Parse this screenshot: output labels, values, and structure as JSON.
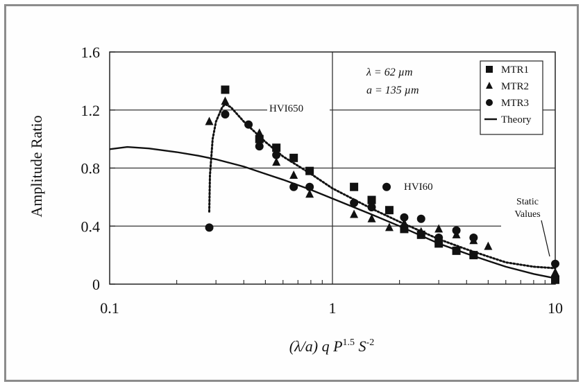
{
  "chart_data": {
    "type": "scatter",
    "xlabel": "(λ/a) q P^1.5 S^-2",
    "ylabel": "Amplitude Ratio",
    "x_scale": "log",
    "xlim": [
      0.1,
      10
    ],
    "ylim": [
      0,
      1.6
    ],
    "x_ticks": [
      "0.1",
      "1",
      "10"
    ],
    "y_ticks": [
      "0",
      "0.4",
      "0.8",
      "1.2",
      "1.6"
    ],
    "params": [
      "λ = 62 µm",
      "a = 135 µm"
    ],
    "legend_position": "top-right",
    "reference_lines": [
      {
        "label": "HVI650",
        "y": 1.2
      },
      {
        "label": "HVI60",
        "y": 0.8
      },
      {
        "label": "",
        "y": 0.4
      }
    ],
    "annotations": [
      "Static Values"
    ],
    "series": [
      {
        "name": "MTR1",
        "marker": "square",
        "x": [
          0.33,
          0.47,
          0.56,
          0.67,
          0.79,
          1.25,
          1.5,
          1.8,
          2.1,
          2.5,
          3.0,
          3.6,
          4.3,
          10
        ],
        "y": [
          1.34,
          1.0,
          0.94,
          0.87,
          0.78,
          0.67,
          0.58,
          0.51,
          0.38,
          0.34,
          0.28,
          0.23,
          0.2,
          0.03
        ]
      },
      {
        "name": "MTR2",
        "marker": "triangle",
        "x": [
          0.28,
          0.33,
          0.47,
          0.56,
          0.67,
          0.79,
          1.25,
          1.5,
          1.8,
          2.1,
          2.5,
          3.0,
          3.6,
          4.3,
          5.0,
          10
        ],
        "y": [
          1.12,
          1.26,
          1.04,
          0.84,
          0.75,
          0.62,
          0.48,
          0.45,
          0.39,
          0.42,
          0.36,
          0.38,
          0.34,
          0.3,
          0.26,
          0.08
        ]
      },
      {
        "name": "MTR3",
        "marker": "circle",
        "x": [
          0.28,
          0.33,
          0.42,
          0.47,
          0.56,
          0.67,
          0.79,
          1.25,
          1.5,
          1.75,
          2.1,
          2.5,
          3.0,
          3.6,
          4.3,
          10
        ],
        "y": [
          0.39,
          1.17,
          1.1,
          0.95,
          0.89,
          0.67,
          0.67,
          0.56,
          0.53,
          0.67,
          0.46,
          0.45,
          0.32,
          0.37,
          0.32,
          0.14
        ]
      },
      {
        "name": "Theory",
        "style": "solid-line",
        "x": [
          0.1,
          0.12,
          0.15,
          0.2,
          0.25,
          0.3,
          0.4,
          0.5,
          0.6,
          0.8,
          1.0,
          1.5,
          2.0,
          3.0,
          4.0,
          5.0,
          6.0,
          8.0,
          10.0
        ],
        "y": [
          0.93,
          0.945,
          0.935,
          0.91,
          0.885,
          0.86,
          0.81,
          0.76,
          0.72,
          0.65,
          0.59,
          0.48,
          0.4,
          0.28,
          0.21,
          0.16,
          0.12,
          0.07,
          0.04
        ]
      }
    ],
    "fit_curve": {
      "style": "dotted",
      "x": [
        0.28,
        0.282,
        0.29,
        0.3,
        0.32,
        0.33,
        0.35,
        0.4,
        0.5,
        0.6,
        0.8,
        1.0,
        1.5,
        2.0,
        3.0,
        4.0,
        5.0,
        6.0,
        8.0,
        10.0
      ],
      "y": [
        0.5,
        0.75,
        1.0,
        1.12,
        1.22,
        1.24,
        1.22,
        1.12,
        0.98,
        0.88,
        0.76,
        0.66,
        0.52,
        0.43,
        0.31,
        0.24,
        0.19,
        0.15,
        0.12,
        0.11
      ]
    }
  }
}
